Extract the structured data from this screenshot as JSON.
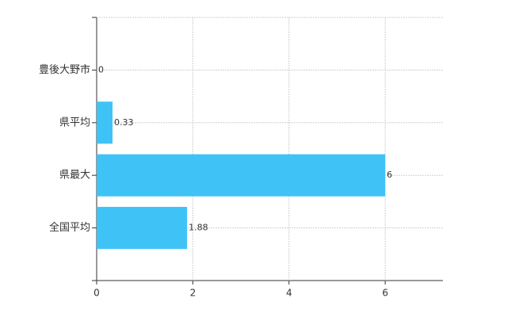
{
  "chart_data": {
    "type": "bar",
    "orientation": "horizontal",
    "categories": [
      "豊後大野市",
      "県平均",
      "県最大",
      "全国平均"
    ],
    "values": [
      0,
      0.33,
      6,
      1.88
    ],
    "color": "#3fc3f7",
    "xlim": [
      0,
      7.2
    ],
    "xticks": [
      0,
      2,
      4,
      6
    ],
    "grid": true
  }
}
